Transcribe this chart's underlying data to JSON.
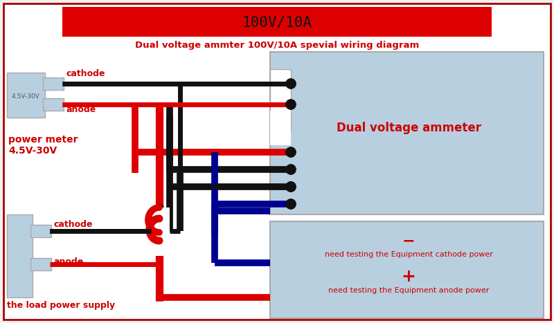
{
  "title_banner_text": "100V/10A",
  "subtitle_text": "Dual voltage ammter 100V/10A spevial wiring diagram",
  "banner_color": "#dd0000",
  "banner_text_color": "#000000",
  "subtitle_color": "#cc0000",
  "bg_color": "#f0f0f0",
  "outer_bg": "#ffffff",
  "power_meter_label": "power meter\n4.5V-30V",
  "power_meter_label_color": "#cc0000",
  "power_meter_box_color": "#b8cfe0",
  "power_meter_text": "4.5V-30V",
  "load_supply_label": "the load power supply",
  "load_supply_color": "#cc0000",
  "dual_ammeter_label": "Dual voltage ammeter",
  "dual_ammeter_color": "#cc0000",
  "ammeter_box_color": "#b8cfe0",
  "cathode_label_top": "cathode",
  "anode_label_top": "anode",
  "cathode_label_bot": "cathode",
  "anode_label_bot": "anode",
  "label_color": "#cc0000",
  "minus_label": "−",
  "plus_label": "+",
  "terminal_label_color": "#cc0000",
  "neg_desc": "need testing the Equipment cathode power",
  "pos_desc": "need testing the Equipment anode power",
  "terminal_desc_color": "#cc0000",
  "wire_black": "#111111",
  "wire_red": "#dd0000",
  "wire_blue": "#000090",
  "connector_color": "#111111",
  "bottom_box_color": "#b8cfe0",
  "white_gap_color": "#ffffff"
}
